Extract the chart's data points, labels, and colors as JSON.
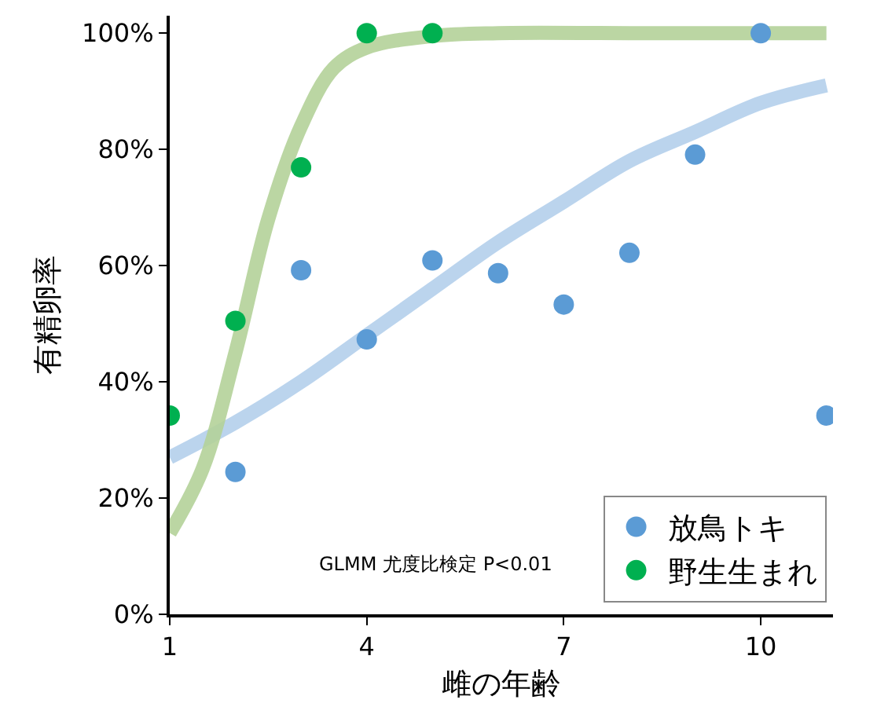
{
  "chart_data": {
    "type": "scatter",
    "xlabel": "雌の年齢",
    "ylabel": "有精卵率",
    "xlim": [
      1,
      11.1
    ],
    "xticks": [
      1,
      4,
      7,
      10
    ],
    "ylim": [
      0,
      103
    ],
    "yticks": [
      {
        "value": 0,
        "label": "0%"
      },
      {
        "value": 20,
        "label": "20%"
      },
      {
        "value": 40,
        "label": "40%"
      },
      {
        "value": 60,
        "label": "60%"
      },
      {
        "value": 80,
        "label": "80%"
      },
      {
        "value": 100,
        "label": "100%"
      }
    ],
    "grid": false,
    "legend": "bottom right",
    "annotations": [
      "GLMM 尤度比検定 P<0.01"
    ],
    "series": [
      {
        "type": "line",
        "marker": "none",
        "color": "#b4d0ec",
        "x": [
          1,
          2,
          3,
          4,
          5,
          6,
          7,
          8,
          9,
          10,
          11
        ],
        "values": [
          27,
          33,
          40,
          48,
          56,
          64,
          71,
          78,
          83,
          88,
          91
        ]
      },
      {
        "type": "line",
        "marker": "none",
        "color": "#b4d29a",
        "x": [
          1,
          1.5,
          2,
          2.5,
          3,
          3.5,
          4,
          5,
          6,
          8,
          11
        ],
        "values": [
          14,
          25,
          45,
          68,
          84,
          94,
          97.5,
          99.5,
          100,
          100,
          100
        ]
      },
      {
        "name": "放鳥トキ",
        "marker": "circle",
        "color": "#5b9bd5",
        "x": [
          2,
          3,
          4,
          5,
          6,
          7,
          8,
          9,
          10,
          11
        ],
        "values": [
          24.5,
          59.2,
          47.3,
          60.9,
          58.7,
          53.3,
          62.2,
          79.1,
          100,
          34.2
        ]
      },
      {
        "name": "野生生まれ",
        "marker": "circle",
        "color": "#00b050",
        "x": [
          1,
          2,
          3,
          4,
          5
        ],
        "values": [
          34.2,
          50.5,
          76.9,
          100,
          100
        ]
      }
    ]
  }
}
